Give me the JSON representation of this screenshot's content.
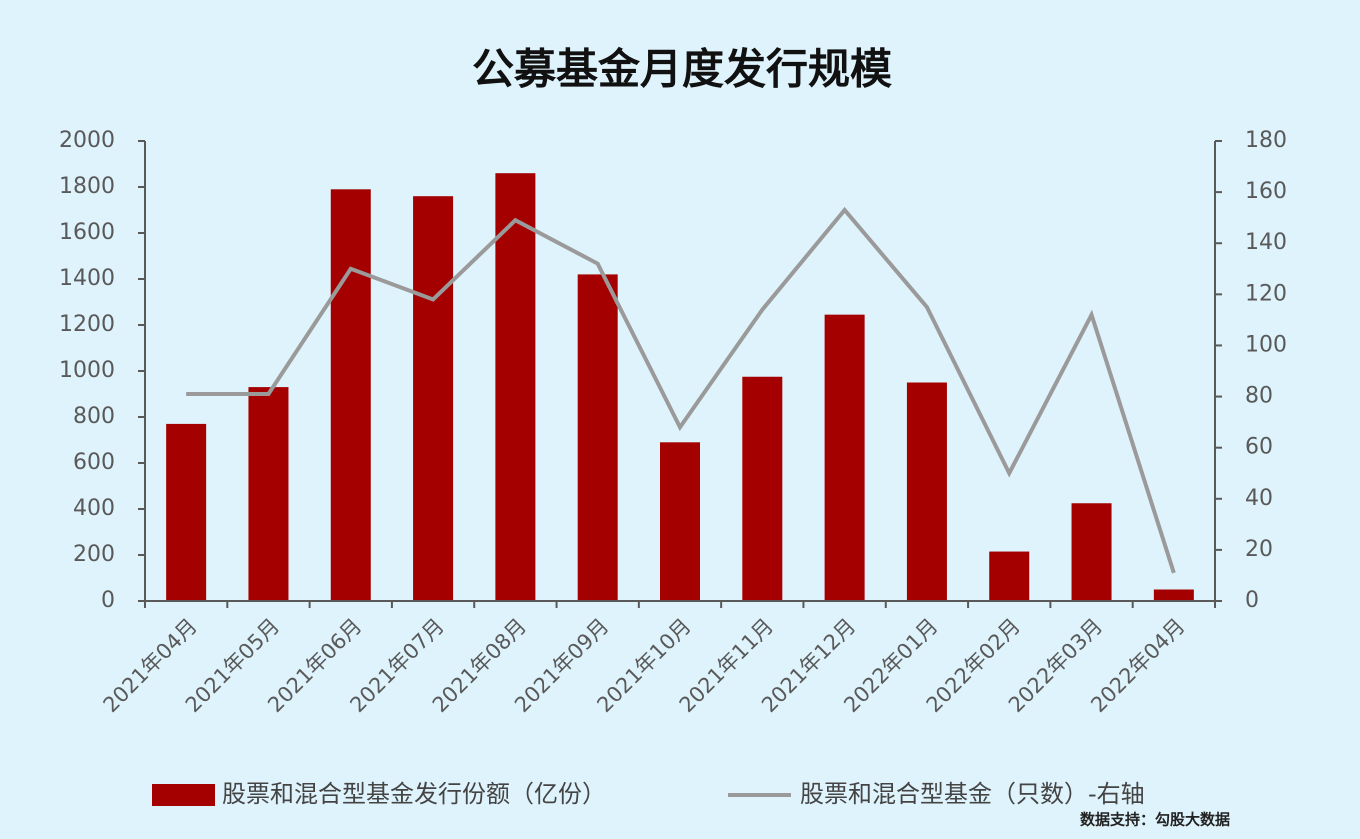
{
  "chart_data": {
    "type": "bar_line",
    "title": "公募基金月度发行规模",
    "categories": [
      "2021年04月",
      "2021年05月",
      "2021年06月",
      "2021年07月",
      "2021年08月",
      "2021年09月",
      "2021年10月",
      "2021年11月",
      "2021年12月",
      "2022年01月",
      "2022年02月",
      "2022年03月",
      "2022年04月"
    ],
    "series": [
      {
        "name": "股票和混合型基金发行份额（亿份）",
        "type": "bar",
        "color": "#a50000",
        "values": [
          770,
          930,
          1790,
          1760,
          1860,
          1420,
          690,
          975,
          1245,
          950,
          215,
          425,
          50
        ]
      },
      {
        "name": "股票和混合型基金（只数）-右轴",
        "type": "line",
        "axis": "y2",
        "color": "#9a9a9a",
        "values": [
          81,
          81,
          130,
          118,
          149,
          132,
          68,
          114,
          153,
          115,
          50,
          112,
          11
        ]
      }
    ],
    "ylim": [
      0,
      2000
    ],
    "yticks": [
      0,
      200,
      400,
      600,
      800,
      1000,
      1200,
      1400,
      1600,
      1800,
      2000
    ],
    "y2lim": [
      0,
      180
    ],
    "y2ticks": [
      0,
      20,
      40,
      60,
      80,
      100,
      120,
      140,
      160,
      180
    ],
    "source": "数据支持：勾股大数据"
  }
}
